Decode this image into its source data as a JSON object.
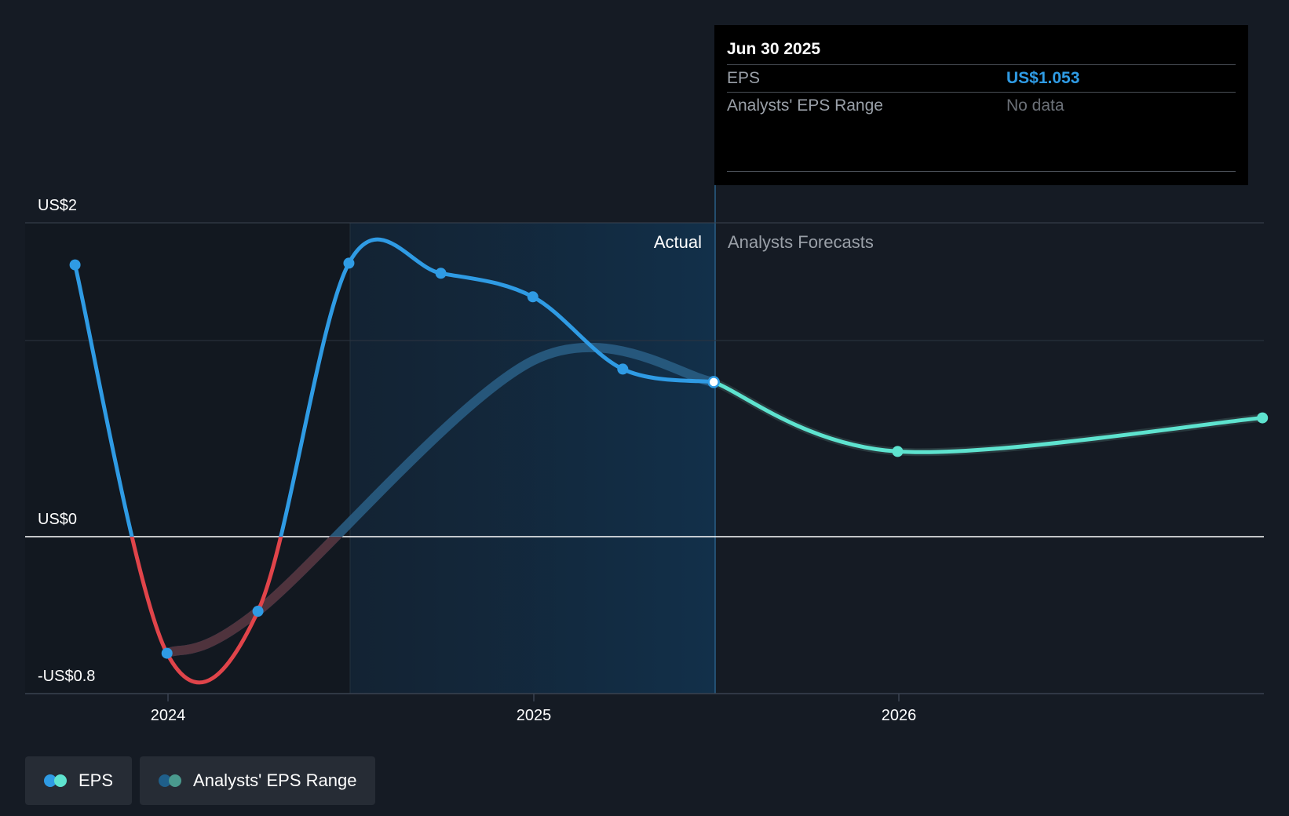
{
  "chart_data": {
    "type": "line",
    "y_axis": {
      "ticks": [
        "US$2",
        "US$0",
        "-US$0.8"
      ],
      "ylim": [
        -0.8,
        2.0
      ]
    },
    "x_axis": {
      "ticks": [
        "2024",
        "2025",
        "2026"
      ]
    },
    "regions": {
      "actual_label": "Actual",
      "forecast_label": "Analysts Forecasts"
    },
    "series": [
      {
        "name": "EPS",
        "points": [
          {
            "x": "2023-09-30",
            "y": 1.75
          },
          {
            "x": "2023-12-31",
            "y": -0.56
          },
          {
            "x": "2024-03-31",
            "y": -0.31
          },
          {
            "x": "2024-06-30",
            "y": 1.76
          },
          {
            "x": "2024-09-30",
            "y": 1.7
          },
          {
            "x": "2024-12-31",
            "y": 1.56
          },
          {
            "x": "2025-03-31",
            "y": 1.13
          },
          {
            "x": "2025-06-30",
            "y": 1.053
          }
        ],
        "forecast": [
          {
            "x": "2025-06-30",
            "y": 1.053
          },
          {
            "x": "2025-12-31",
            "y": 0.64
          },
          {
            "x": "2026-12-31",
            "y": 0.84
          }
        ]
      },
      {
        "name": "Analysts' EPS Range",
        "points": [
          {
            "x": "2023-12-31",
            "y": -0.56
          },
          {
            "x": "2024-03-31",
            "y": -0.31
          },
          {
            "x": "2024-12-31",
            "y": 1.18
          },
          {
            "x": "2025-06-30",
            "y": 1.053
          },
          {
            "x": "2025-12-31",
            "y": 0.64
          },
          {
            "x": "2026-12-31",
            "y": 0.84
          }
        ]
      }
    ]
  },
  "tooltip": {
    "date": "Jun 30 2025",
    "rows": [
      {
        "label": "EPS",
        "value": "US$1.053"
      },
      {
        "label": "Analysts' EPS Range",
        "value": "No data"
      }
    ]
  },
  "legend": [
    {
      "label": "EPS",
      "colors": [
        "#2f9be4",
        "#5ee3cf"
      ]
    },
    {
      "label": "Analysts' EPS Range",
      "colors": [
        "#1f5f8a",
        "#4a9a8e"
      ]
    }
  ],
  "colors": {
    "eps_actual": "#2f9be4",
    "eps_negative": "#e0444a",
    "eps_forecast": "#5ee3cf",
    "range_band": "#2a5f86",
    "background": "#151b24",
    "actual_shade": "#12304a"
  }
}
